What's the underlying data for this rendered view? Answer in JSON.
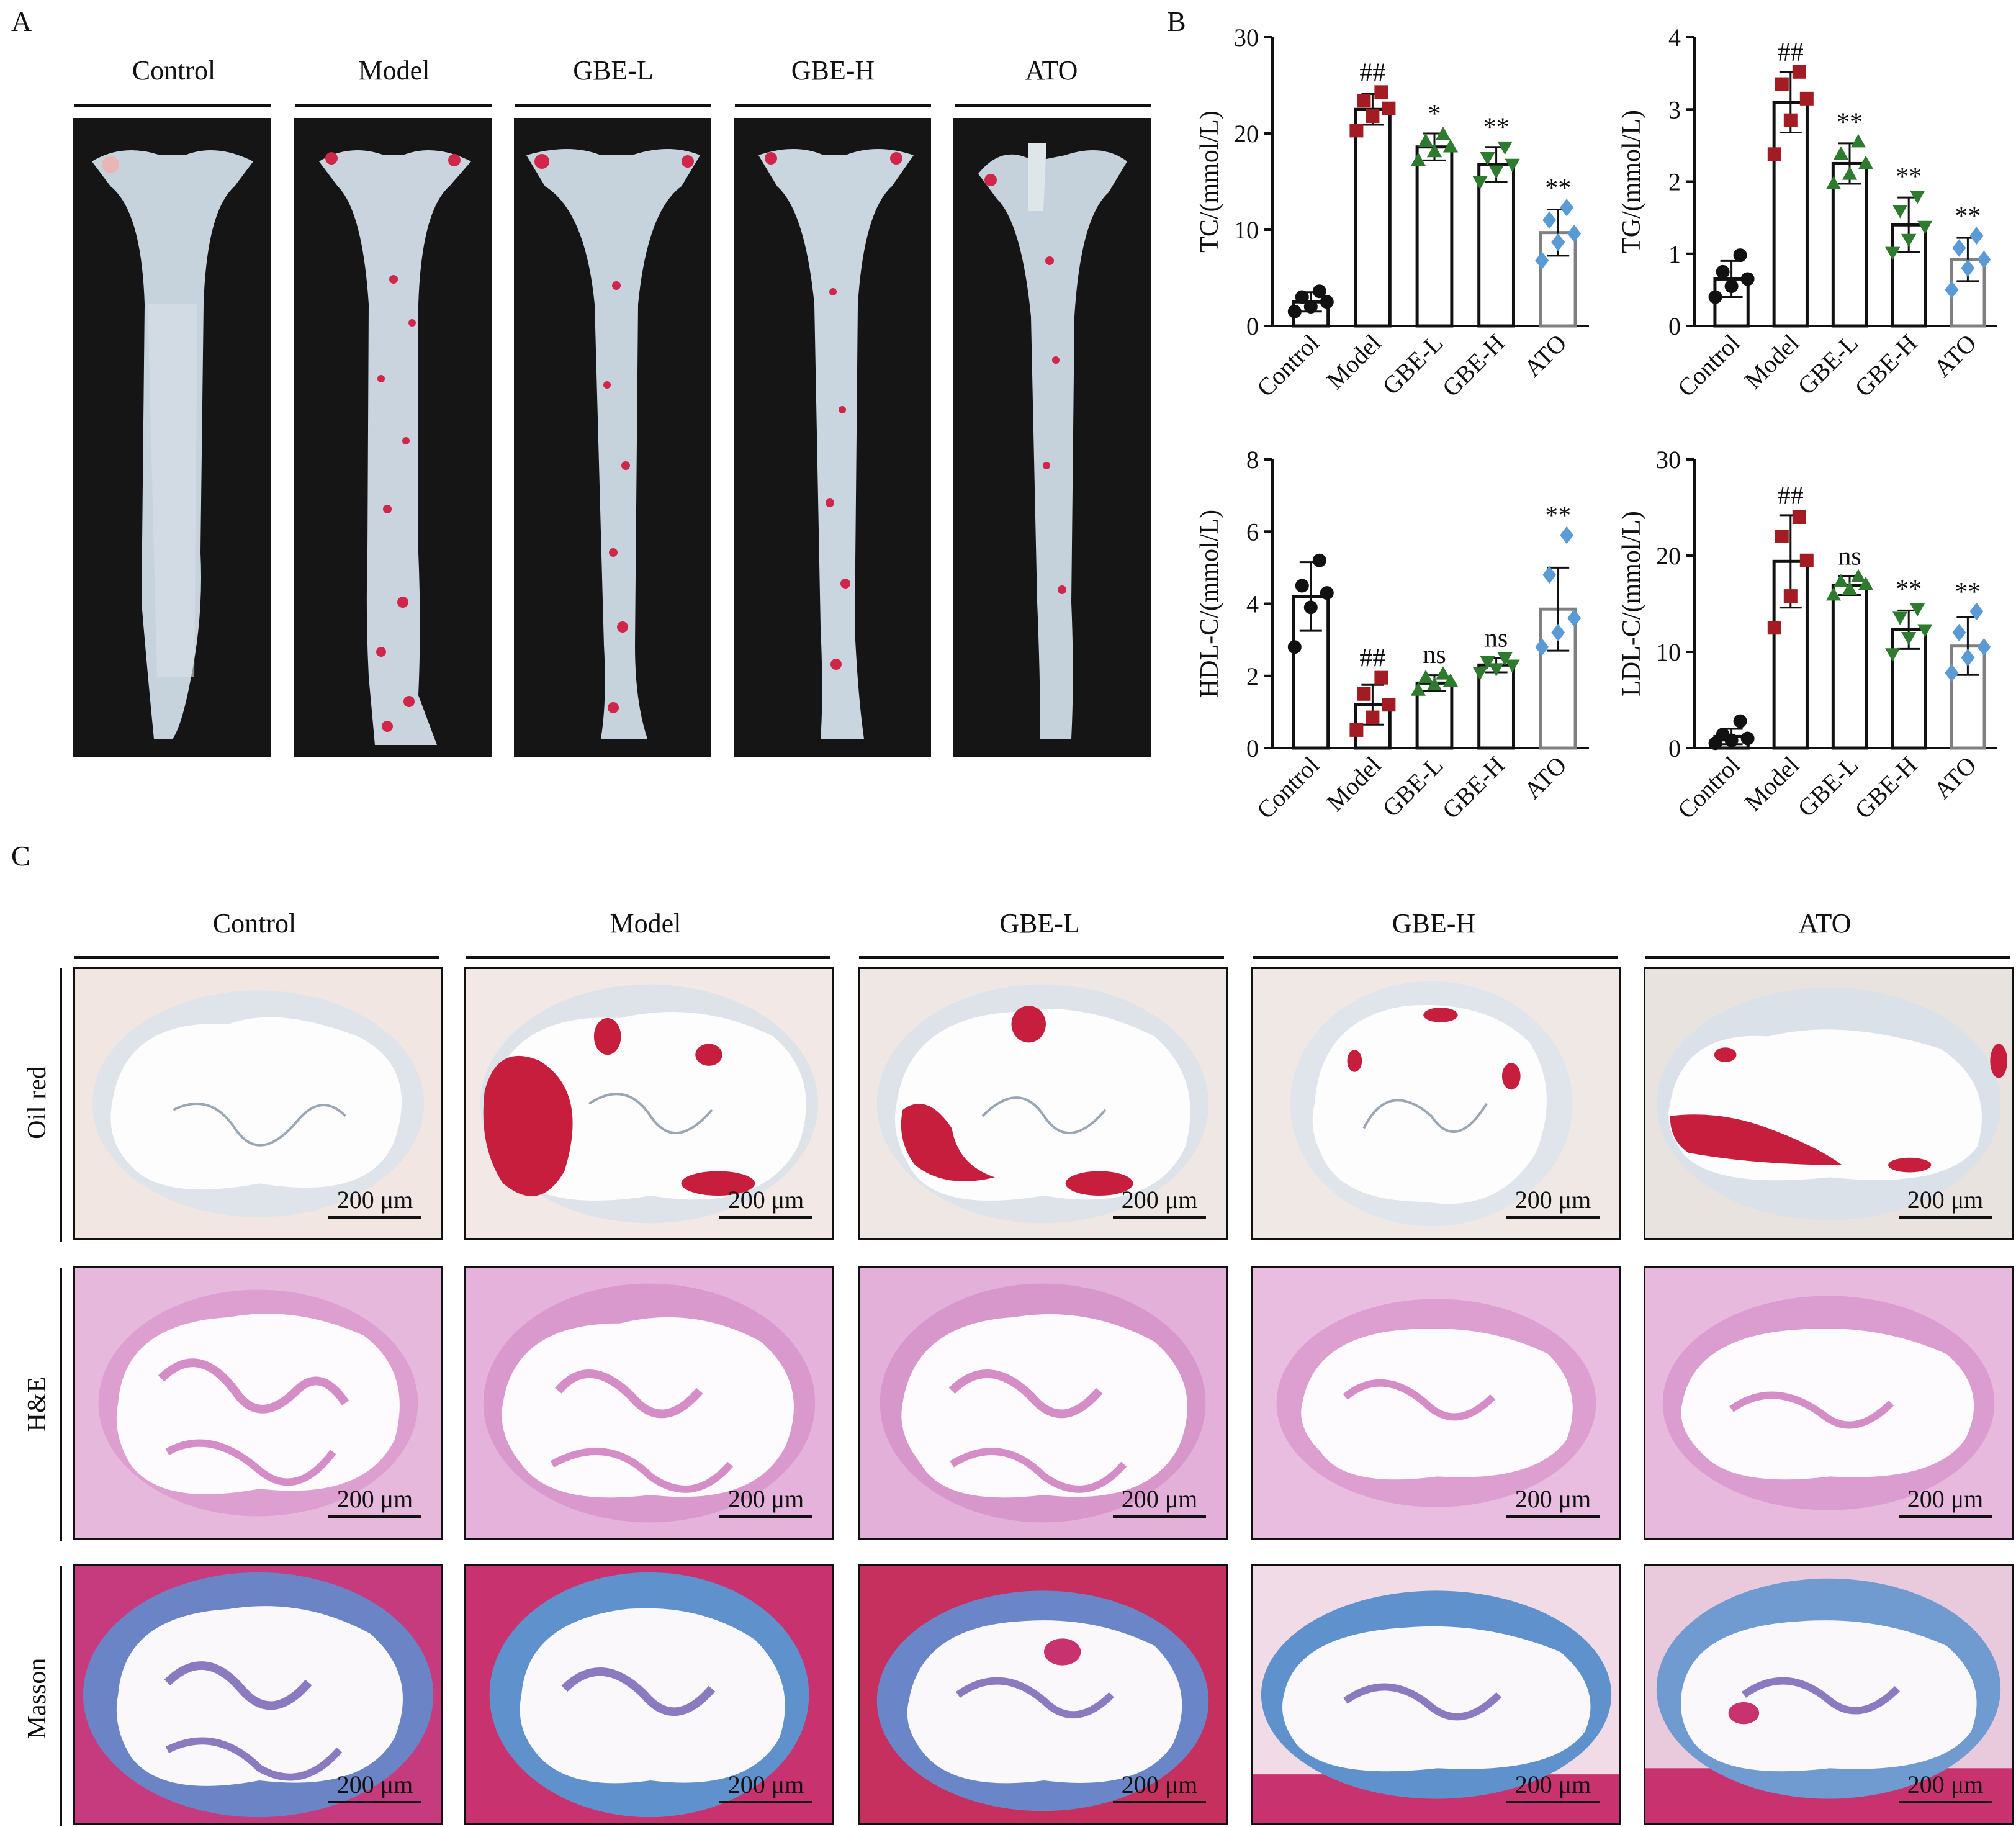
{
  "panels": {
    "a": "A",
    "b": "B",
    "c": "C"
  },
  "groups": [
    "Control",
    "Model",
    "GBE-L",
    "GBE-H",
    "ATO"
  ],
  "stain_rows": [
    "Oil red",
    "H&E",
    "Masson"
  ],
  "scale_label": "200 μm",
  "colors": {
    "control": "#111111",
    "model": "#a41c23",
    "gbel": "#2e7a2e",
    "gbeh": "#2e7a2e",
    "ato": "#5b9bd5",
    "ato_bar": "#808080"
  },
  "chart_data": [
    {
      "type": "bar",
      "ylabel": "TC/(mmol/L)",
      "categories": [
        "Control",
        "Model",
        "GBE-L",
        "GBE-H",
        "ATO"
      ],
      "values": [
        2.5,
        22.5,
        18.6,
        16.8,
        9.7
      ],
      "errors": [
        1.0,
        1.6,
        1.4,
        1.8,
        2.4
      ],
      "points": [
        [
          1.5,
          2.0,
          2.5,
          3.0,
          3.6
        ],
        [
          20.3,
          21.8,
          22.6,
          23.4,
          24.3
        ],
        [
          17.2,
          18.1,
          18.6,
          19.2,
          19.9
        ],
        [
          15.0,
          16.1,
          16.8,
          17.5,
          18.6
        ],
        [
          6.8,
          8.7,
          9.6,
          11.0,
          12.3
        ]
      ],
      "annotations": [
        "",
        "##",
        "*",
        "**",
        "**"
      ],
      "ylim": [
        0,
        30
      ],
      "yticks": [
        0,
        10,
        20,
        30
      ]
    },
    {
      "type": "bar",
      "ylabel": "TG/(mmol/L)",
      "categories": [
        "Control",
        "Model",
        "GBE-L",
        "GBE-H",
        "ATO"
      ],
      "values": [
        0.65,
        3.1,
        2.25,
        1.4,
        0.92
      ],
      "errors": [
        0.25,
        0.42,
        0.28,
        0.38,
        0.3
      ],
      "points": [
        [
          0.4,
          0.55,
          0.65,
          0.75,
          0.98
        ],
        [
          2.38,
          2.85,
          3.15,
          3.35,
          3.52
        ],
        [
          1.97,
          2.1,
          2.25,
          2.38,
          2.55
        ],
        [
          1.02,
          1.2,
          1.38,
          1.6,
          1.8
        ],
        [
          0.5,
          0.8,
          0.92,
          1.08,
          1.25
        ]
      ],
      "annotations": [
        "",
        "##",
        "**",
        "**",
        "**"
      ],
      "ylim": [
        0,
        4
      ],
      "yticks": [
        0,
        1,
        2,
        3,
        4
      ]
    },
    {
      "type": "bar",
      "ylabel": "HDL-C/(mmol/L)",
      "categories": [
        "Control",
        "Model",
        "GBE-L",
        "GBE-H",
        "ATO"
      ],
      "values": [
        4.2,
        1.2,
        1.8,
        2.3,
        3.85
      ],
      "errors": [
        0.95,
        0.55,
        0.22,
        0.2,
        1.15
      ],
      "points": [
        [
          2.8,
          3.9,
          4.3,
          4.5,
          5.2
        ],
        [
          0.5,
          0.85,
          1.2,
          1.5,
          1.95
        ],
        [
          1.6,
          1.75,
          1.85,
          1.95,
          2.05
        ],
        [
          2.1,
          2.2,
          2.3,
          2.4,
          2.5
        ],
        [
          2.8,
          3.2,
          3.6,
          4.8,
          5.9
        ]
      ],
      "annotations": [
        "",
        "##",
        "ns",
        "ns",
        "**"
      ],
      "ylim": [
        0,
        8
      ],
      "yticks": [
        0,
        2,
        4,
        6,
        8
      ]
    },
    {
      "type": "bar",
      "ylabel": "LDL-C/(mmol/L)",
      "categories": [
        "Control",
        "Model",
        "GBE-L",
        "GBE-H",
        "ATO"
      ],
      "values": [
        1.2,
        19.4,
        16.9,
        12.3,
        10.6
      ],
      "errors": [
        0.8,
        4.8,
        1.0,
        2.0,
        3.0
      ],
      "points": [
        [
          0.5,
          0.8,
          1.0,
          1.4,
          2.8
        ],
        [
          12.5,
          15.8,
          19.5,
          22.0,
          24.0
        ],
        [
          15.9,
          16.5,
          17.0,
          17.3,
          17.8
        ],
        [
          9.8,
          11.5,
          12.3,
          13.6,
          14.5
        ],
        [
          7.8,
          9.4,
          10.5,
          12.0,
          14.2
        ]
      ],
      "annotations": [
        "",
        "##",
        "ns",
        "**",
        "**"
      ],
      "ylim": [
        0,
        30
      ],
      "yticks": [
        0,
        10,
        20,
        30
      ]
    }
  ]
}
